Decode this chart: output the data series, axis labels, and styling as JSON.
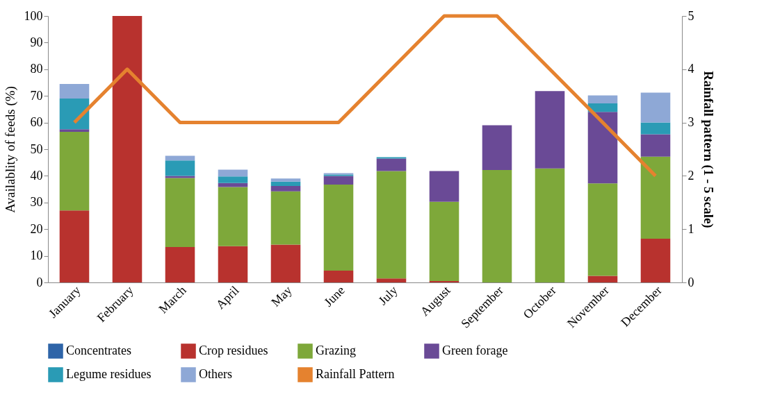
{
  "chart_data": {
    "type": "bar",
    "stacked": true,
    "ylabel": "Availablity of feeds (%)",
    "y2label": "Rainfall pattern (1 - 5 scale)",
    "categories": [
      "January",
      "February",
      "March",
      "April",
      "May",
      "June",
      "July",
      "August",
      "September",
      "October",
      "November",
      "December"
    ],
    "series": [
      {
        "name": "Concentrates",
        "color": "#2e64a8",
        "values": [
          0,
          0,
          0,
          0,
          0,
          0,
          0,
          0,
          0,
          0,
          0,
          0
        ]
      },
      {
        "name": "Crop residues",
        "color": "#b8322e",
        "values": [
          27,
          100,
          13.3,
          13.6,
          14.2,
          4.4,
          1.5,
          0.5,
          0,
          0,
          2.5,
          16.4
        ]
      },
      {
        "name": "Grazing",
        "color": "#7ea83a",
        "values": [
          29.5,
          0,
          25.9,
          22.2,
          20,
          32.3,
          40.3,
          29.8,
          42.2,
          42.8,
          34.7,
          30.8
        ]
      },
      {
        "name": "Green forage",
        "color": "#6a4a96",
        "values": [
          1,
          0,
          0.8,
          1.5,
          2,
          3.3,
          4.7,
          11.5,
          16.8,
          29,
          26.8,
          8.4
        ]
      },
      {
        "name": "Legume residues",
        "color": "#2a9bb5",
        "values": [
          11.5,
          0,
          5.8,
          2.5,
          1.6,
          0.5,
          0.5,
          0,
          0,
          0,
          3.2,
          4.4
        ]
      },
      {
        "name": "Others",
        "color": "#8ea8d6",
        "values": [
          5.5,
          0,
          1.7,
          2.5,
          1.2,
          0.5,
          null,
          0,
          0,
          0,
          3,
          11.2
        ]
      },
      {
        "name": "Rainfall Pattern",
        "type": "line",
        "axis": "y2",
        "color": "#e5822f",
        "values": [
          3,
          4,
          3,
          3,
          3,
          3,
          4,
          5,
          5,
          4,
          3,
          2
        ]
      }
    ],
    "ylim": [
      0,
      100
    ],
    "yticks": [
      0,
      10,
      20,
      30,
      40,
      50,
      60,
      70,
      80,
      90,
      100
    ],
    "y2lim": [
      0,
      5
    ],
    "y2ticks": [
      0,
      1,
      2,
      3,
      4,
      5
    ],
    "legend": "bottom",
    "grid": false
  }
}
